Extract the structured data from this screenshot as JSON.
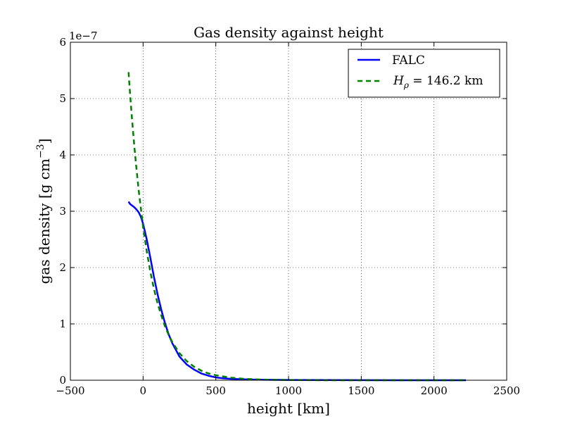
{
  "chart_data": {
    "type": "line",
    "title": "Gas density against height",
    "xlabel": "height [km]",
    "ylabel": "gas density [g cm",
    "ylabel_superscript": "−3",
    "ylabel_close": "]",
    "y_offset_label": "1e−7",
    "xlim": [
      -500,
      2500
    ],
    "ylim": [
      0,
      6
    ],
    "y_scale_factor": 1e-07,
    "grid": true,
    "legend_position": "top-right",
    "x_ticks": [
      -500,
      0,
      500,
      1000,
      1500,
      2000,
      2500
    ],
    "x_tick_labels": [
      "−500",
      "0",
      "500",
      "1000",
      "1500",
      "2000",
      "2500"
    ],
    "y_ticks": [
      0,
      1,
      2,
      3,
      4,
      5,
      6
    ],
    "y_tick_labels": [
      "0",
      "1",
      "2",
      "3",
      "4",
      "5",
      "6"
    ],
    "series": [
      {
        "name": "FALC",
        "color": "#0000ff",
        "dash": "solid",
        "x": [
          -100,
          -90,
          -75,
          -60,
          -45,
          -30,
          -15,
          0,
          25,
          50,
          75,
          100,
          125,
          150,
          175,
          200,
          250,
          300,
          350,
          400,
          450,
          500,
          550,
          600,
          700,
          800,
          1000,
          1250,
          1500,
          1750,
          2000,
          2220
        ],
        "y": [
          3.17,
          3.13,
          3.1,
          3.07,
          3.03,
          2.98,
          2.9,
          2.78,
          2.5,
          2.17,
          1.83,
          1.52,
          1.25,
          1.02,
          0.82,
          0.66,
          0.42,
          0.28,
          0.19,
          0.12,
          0.08,
          0.05,
          0.035,
          0.025,
          0.015,
          0.01,
          0.005,
          0.002,
          0.001,
          0.0005,
          0.0002,
          0.0001
        ]
      },
      {
        "name_prefix": "H",
        "name_subscript": "ρ",
        "name_suffix": " = 146.2 km",
        "color": "#008000",
        "dash": "dashed",
        "x": [
          -100,
          -90,
          -80,
          -70,
          -60,
          -50,
          -40,
          -30,
          -20,
          -10,
          0,
          25,
          50,
          75,
          100,
          125,
          150,
          175,
          200,
          250,
          300,
          350,
          400,
          450,
          500,
          600,
          700,
          800,
          1000,
          1250,
          1500,
          1750,
          2000,
          2220
        ],
        "y": [
          5.47,
          5.1,
          4.76,
          4.44,
          4.15,
          3.87,
          3.61,
          3.37,
          3.15,
          2.94,
          2.72,
          2.29,
          1.92,
          1.62,
          1.36,
          1.15,
          0.96,
          0.81,
          0.68,
          0.48,
          0.34,
          0.24,
          0.17,
          0.12,
          0.089,
          0.046,
          0.024,
          0.012,
          0.0034,
          0.0006,
          0.0001,
          2e-05,
          4e-06,
          1e-06
        ]
      }
    ]
  }
}
